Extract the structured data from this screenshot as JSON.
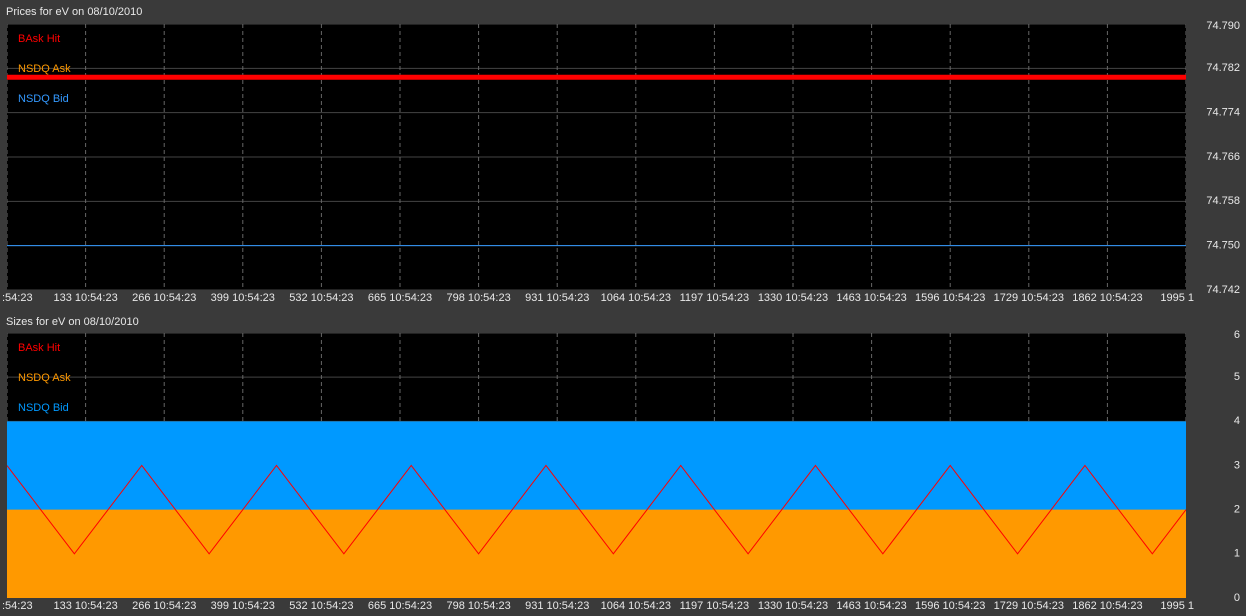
{
  "chart_data": [
    {
      "type": "line",
      "title": "Prices for  eV  on  08/10/2010",
      "xlim": [
        0,
        1995
      ],
      "xticks": [
        {
          "value": 0,
          "label": ":54:23"
        },
        {
          "value": 133,
          "label": "133 10:54:23"
        },
        {
          "value": 266,
          "label": "266 10:54:23"
        },
        {
          "value": 399,
          "label": "399 10:54:23"
        },
        {
          "value": 532,
          "label": "532 10:54:23"
        },
        {
          "value": 665,
          "label": "665 10:54:23"
        },
        {
          "value": 798,
          "label": "798 10:54:23"
        },
        {
          "value": 931,
          "label": "931 10:54:23"
        },
        {
          "value": 1064,
          "label": "1064 10:54:23"
        },
        {
          "value": 1197,
          "label": "1197 10:54:23"
        },
        {
          "value": 1330,
          "label": "1330 10:54:23"
        },
        {
          "value": 1463,
          "label": "1463 10:54:23"
        },
        {
          "value": 1596,
          "label": "1596 10:54:23"
        },
        {
          "value": 1729,
          "label": "1729 10:54:23"
        },
        {
          "value": 1862,
          "label": "1862 10:54:23"
        },
        {
          "value": 1995,
          "label": "1995 1"
        }
      ],
      "ylim": [
        74.742,
        74.79
      ],
      "yticks": [
        {
          "value": 74.742,
          "label": "74.742"
        },
        {
          "value": 74.75,
          "label": "74.750"
        },
        {
          "value": 74.758,
          "label": "74.758"
        },
        {
          "value": 74.766,
          "label": "74.766"
        },
        {
          "value": 74.774,
          "label": "74.774"
        },
        {
          "value": 74.782,
          "label": "74.782"
        },
        {
          "value": 74.79,
          "label": "74.790"
        }
      ],
      "grid": true,
      "series": [
        {
          "name": "NSDQ Bid",
          "color": "#3399ff",
          "style": "line",
          "width": 1,
          "x": [
            0,
            1995
          ],
          "values": [
            74.75,
            74.75
          ]
        },
        {
          "name": "NSDQ Ask",
          "color": "#ff9900",
          "style": "line",
          "width": 3,
          "x": [
            0,
            1995
          ],
          "values": [
            74.7804,
            74.7804
          ]
        },
        {
          "name": "BAsk Hit",
          "color": "#ff0000",
          "style": "line",
          "width": 5,
          "x": [
            0,
            1995
          ],
          "values": [
            74.7804,
            74.7804
          ]
        }
      ]
    },
    {
      "type": "line",
      "title": "Sizes for  eV  on  08/10/2010",
      "xlim": [
        0,
        1995
      ],
      "xticks": [
        {
          "value": 0,
          "label": ":54:23"
        },
        {
          "value": 133,
          "label": "133 10:54:23"
        },
        {
          "value": 266,
          "label": "266 10:54:23"
        },
        {
          "value": 399,
          "label": "399 10:54:23"
        },
        {
          "value": 532,
          "label": "532 10:54:23"
        },
        {
          "value": 665,
          "label": "665 10:54:23"
        },
        {
          "value": 798,
          "label": "798 10:54:23"
        },
        {
          "value": 931,
          "label": "931 10:54:23"
        },
        {
          "value": 1064,
          "label": "1064 10:54:23"
        },
        {
          "value": 1197,
          "label": "1197 10:54:23"
        },
        {
          "value": 1330,
          "label": "1330 10:54:23"
        },
        {
          "value": 1463,
          "label": "1463 10:54:23"
        },
        {
          "value": 1596,
          "label": "1596 10:54:23"
        },
        {
          "value": 1729,
          "label": "1729 10:54:23"
        },
        {
          "value": 1862,
          "label": "1862 10:54:23"
        },
        {
          "value": 1995,
          "label": "1995 1"
        }
      ],
      "ylim": [
        0,
        6
      ],
      "yticks": [
        0,
        1,
        2,
        3,
        4,
        5,
        6
      ],
      "grid": true,
      "series": [
        {
          "name": "NSDQ Bid",
          "color": "#0099ff",
          "style": "area",
          "width": 1,
          "x": [
            0,
            1995
          ],
          "values": [
            4,
            4
          ]
        },
        {
          "name": "NSDQ Ask",
          "color": "#ff9900",
          "style": "area",
          "width": 1,
          "x": [
            0,
            1995
          ],
          "values": [
            2,
            2
          ]
        },
        {
          "name": "BAsk Hit",
          "color": "#ff0000",
          "style": "line",
          "width": 1,
          "x": [
            0,
            57,
            114,
            171,
            228,
            285,
            342,
            399,
            456,
            513,
            570,
            627,
            684,
            741,
            798,
            855,
            912,
            969,
            1026,
            1083,
            1140,
            1197,
            1254,
            1311,
            1368,
            1425,
            1482,
            1539,
            1596,
            1653,
            1710,
            1767,
            1824,
            1881,
            1938,
            1995
          ],
          "values": [
            3,
            2,
            1,
            2,
            3,
            2,
            1,
            2,
            3,
            2,
            1,
            2,
            3,
            2,
            1,
            2,
            3,
            2,
            1,
            2,
            3,
            2,
            1,
            2,
            3,
            2,
            1,
            2,
            3,
            2,
            1,
            2,
            3,
            2,
            1,
            2
          ]
        }
      ]
    }
  ]
}
